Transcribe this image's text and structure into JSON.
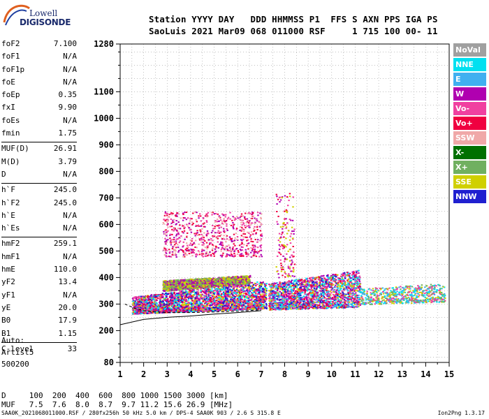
{
  "logo": {
    "line1": "Lowell",
    "line2": "DIGISONDE"
  },
  "header": {
    "row1": "Station YYYY DAY   DDD HHMMSS P1  FFS S AXN PPS IGA PS",
    "row2": "SaoLuis 2021 Mar09 068 011000 RSF     1 715 100 00- 11"
  },
  "params": [
    {
      "label": "foF2",
      "value": "7.100"
    },
    {
      "label": "foF1",
      "value": "N/A"
    },
    {
      "label": "foF1p",
      "value": "N/A"
    },
    {
      "label": "foE",
      "value": "N/A"
    },
    {
      "label": "foEp",
      "value": "0.35"
    },
    {
      "label": "fxI",
      "value": "9.90"
    },
    {
      "label": "foEs",
      "value": "N/A"
    },
    {
      "label": "fmin",
      "value": "1.75"
    },
    {
      "label": "MUF(D)",
      "value": "26.91"
    },
    {
      "label": "M(D)",
      "value": "3.79"
    },
    {
      "label": "D",
      "value": "N/A"
    },
    {
      "label": "h`F",
      "value": "245.0"
    },
    {
      "label": "h`F2",
      "value": "245.0"
    },
    {
      "label": "h`E",
      "value": "N/A"
    },
    {
      "label": "h`Es",
      "value": "N/A"
    },
    {
      "label": "hmF2",
      "value": "259.1"
    },
    {
      "label": "hmF1",
      "value": "N/A"
    },
    {
      "label": "hmE",
      "value": "110.0"
    },
    {
      "label": "yF2",
      "value": "13.4"
    },
    {
      "label": "yF1",
      "value": "N/A"
    },
    {
      "label": "yE",
      "value": "20.0"
    },
    {
      "label": "B0",
      "value": "17.9"
    },
    {
      "label": "B1",
      "value": "1.15"
    },
    {
      "label": "C-level",
      "value": "33"
    }
  ],
  "auto": {
    "line1": "Auto:",
    "line2": "Artist5",
    "line3": "500200"
  },
  "legend": [
    {
      "label": "NoVal",
      "color": "#a0a0a0"
    },
    {
      "label": "NNE",
      "color": "#00e0f0"
    },
    {
      "label": "E",
      "color": "#40b0f0"
    },
    {
      "label": "W",
      "color": "#b000b0"
    },
    {
      "label": "Vo-",
      "color": "#f040a0"
    },
    {
      "label": "Vo+",
      "color": "#f00040"
    },
    {
      "label": "SSW",
      "color": "#f0a8a8"
    },
    {
      "label": "X-",
      "color": "#007000"
    },
    {
      "label": "X+",
      "color": "#70b060"
    },
    {
      "label": "SSE",
      "color": "#d0d000"
    },
    {
      "label": "NNW",
      "color": "#2020d0"
    }
  ],
  "bottom": {
    "d_row": "D     100  200  400  600  800 1000 1500 3000 [km]",
    "muf_row": "MUF   7.5  7.6  8.0  8.7  9.7 11.2 15.6 26.9 [MHz]"
  },
  "footer": "SAA0K_2021068011000.RSF / 280fx256h 50 kHz 5.0 km / DPS-4 SAA0K 903 / 2.6 S 315.8 E",
  "version": "Ion2Png 1.3.17",
  "chart_data": {
    "type": "scatter",
    "title": "",
    "xlabel": "",
    "ylabel": "",
    "xlim": [
      1,
      15
    ],
    "ylim": [
      80,
      1280
    ],
    "x_ticks": [
      1,
      2,
      3,
      4,
      5,
      6,
      7,
      8,
      9,
      10,
      11,
      12,
      13,
      14,
      15
    ],
    "y_ticks": [
      80,
      200,
      300,
      400,
      500,
      600,
      700,
      800,
      900,
      1000,
      1100,
      1280
    ],
    "grid": true,
    "ionogram_regions": [
      {
        "name": "F trace main band",
        "x": [
          1.5,
          7.2
        ],
        "y_from": [
          265,
          285
        ],
        "y_to": [
          330,
          390
        ],
        "colors": [
          "#f00040",
          "#f040a0",
          "#d0d000",
          "#b000b0",
          "#00e0f0",
          "#2020d0"
        ]
      },
      {
        "name": "F trace high band",
        "x": [
          2.8,
          6.5
        ],
        "y_from": [
          350,
          380
        ],
        "y_to": [
          390,
          410
        ],
        "colors": [
          "#d0d000",
          "#70b060",
          "#b000b0"
        ]
      },
      {
        "name": "spread F",
        "x": [
          7.3,
          11.2
        ],
        "y_from": [
          280,
          290
        ],
        "y_to": [
          380,
          430
        ],
        "colors": [
          "#f00040",
          "#f040a0",
          "#b000b0",
          "#00e0f0",
          "#d0d000",
          "#2020d0",
          "#40b0f0"
        ]
      },
      {
        "name": "spread F tail",
        "x": [
          11.2,
          14.8
        ],
        "y_from": [
          300,
          310
        ],
        "y_to": [
          360,
          380
        ],
        "colors": [
          "#00e0f0",
          "#d0d000",
          "#f040a0",
          "#70b060",
          "#40b0f0"
        ]
      },
      {
        "name": "multiple reflection",
        "x": [
          2.8,
          7.0
        ],
        "y_from": [
          480,
          480
        ],
        "y_to": [
          650,
          650
        ],
        "colors": [
          "#b000b0",
          "#f040a0",
          "#f0a8a8",
          "#f00040"
        ]
      },
      {
        "name": "plume",
        "x": [
          7.6,
          8.4
        ],
        "y_from": [
          400,
          400
        ],
        "y_to": [
          720,
          720
        ],
        "colors": [
          "#b000b0",
          "#f040a0",
          "#d0d000",
          "#f00040"
        ]
      }
    ],
    "model_curves": [
      {
        "name": "lower bound",
        "points": [
          [
            1,
            222
          ],
          [
            2,
            242
          ],
          [
            3,
            250
          ],
          [
            4,
            255
          ],
          [
            5,
            262
          ],
          [
            6,
            268
          ],
          [
            7,
            275
          ]
        ]
      },
      {
        "name": "upper bound",
        "points": [
          [
            1.2,
            300
          ],
          [
            1.6,
            285
          ],
          [
            2,
            275
          ],
          [
            3,
            268
          ],
          [
            4,
            268
          ],
          [
            5,
            270
          ],
          [
            6,
            273
          ],
          [
            7,
            278
          ]
        ]
      }
    ]
  }
}
